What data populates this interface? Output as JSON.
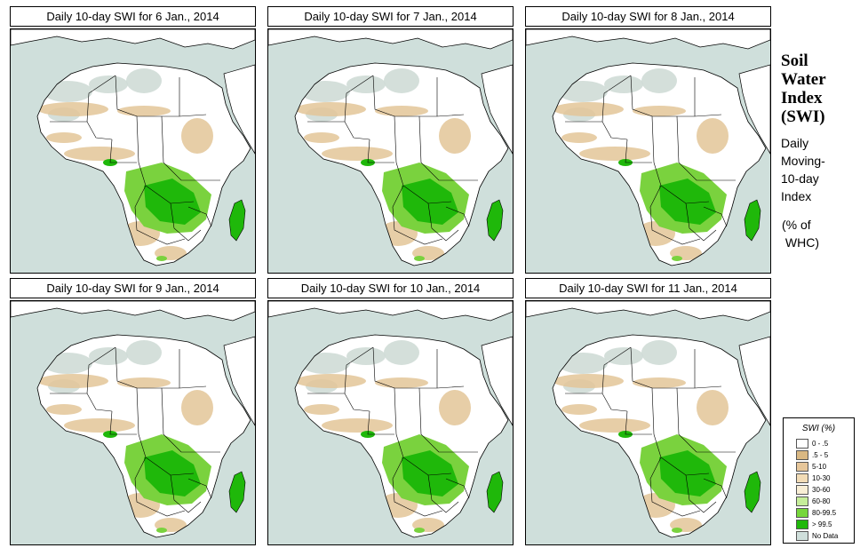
{
  "panels": [
    {
      "title": "Daily 10-day SWI for  6 Jan., 2014"
    },
    {
      "title": "Daily 10-day SWI for  7 Jan., 2014"
    },
    {
      "title": "Daily 10-day SWI for  8 Jan., 2014"
    },
    {
      "title": "Daily 10-day SWI for  9 Jan., 2014"
    },
    {
      "title": "Daily 10-day SWI for  10 Jan., 2014"
    },
    {
      "title": "Daily 10-day SWI for  11 Jan., 2014"
    }
  ],
  "side": {
    "title_lines": [
      "Soil",
      "Water",
      "Index",
      "(SWI)"
    ],
    "desc_lines": [
      "Daily",
      "Moving-",
      "10-day",
      "Index"
    ],
    "unit_lines": [
      "(% of",
      " WHC)"
    ]
  },
  "legend": {
    "title": "SWI (%)",
    "items": [
      {
        "label": "0 - .5",
        "color": "#ffffff"
      },
      {
        "label": ".5 - 5",
        "color": "#d9b883"
      },
      {
        "label": "5-10",
        "color": "#e6c69a"
      },
      {
        "label": "10-30",
        "color": "#f2dcb6"
      },
      {
        "label": "30-60",
        "color": "#f8eed5"
      },
      {
        "label": "60-80",
        "color": "#c6ee9a"
      },
      {
        "label": "80-99.5",
        "color": "#76d63a"
      },
      {
        "label": "> 99.5",
        "color": "#1fb80a"
      },
      {
        "label": "No Data",
        "color": "#cfdfdb"
      }
    ]
  },
  "colors": {
    "ocean": "#cfdfdb",
    "land": "#ffffff",
    "dry": "#e3c598",
    "desert_nodata": "#cfdbd6",
    "wet": "#7ad23e",
    "very_wet": "#1fb80a",
    "border": "#000000"
  }
}
